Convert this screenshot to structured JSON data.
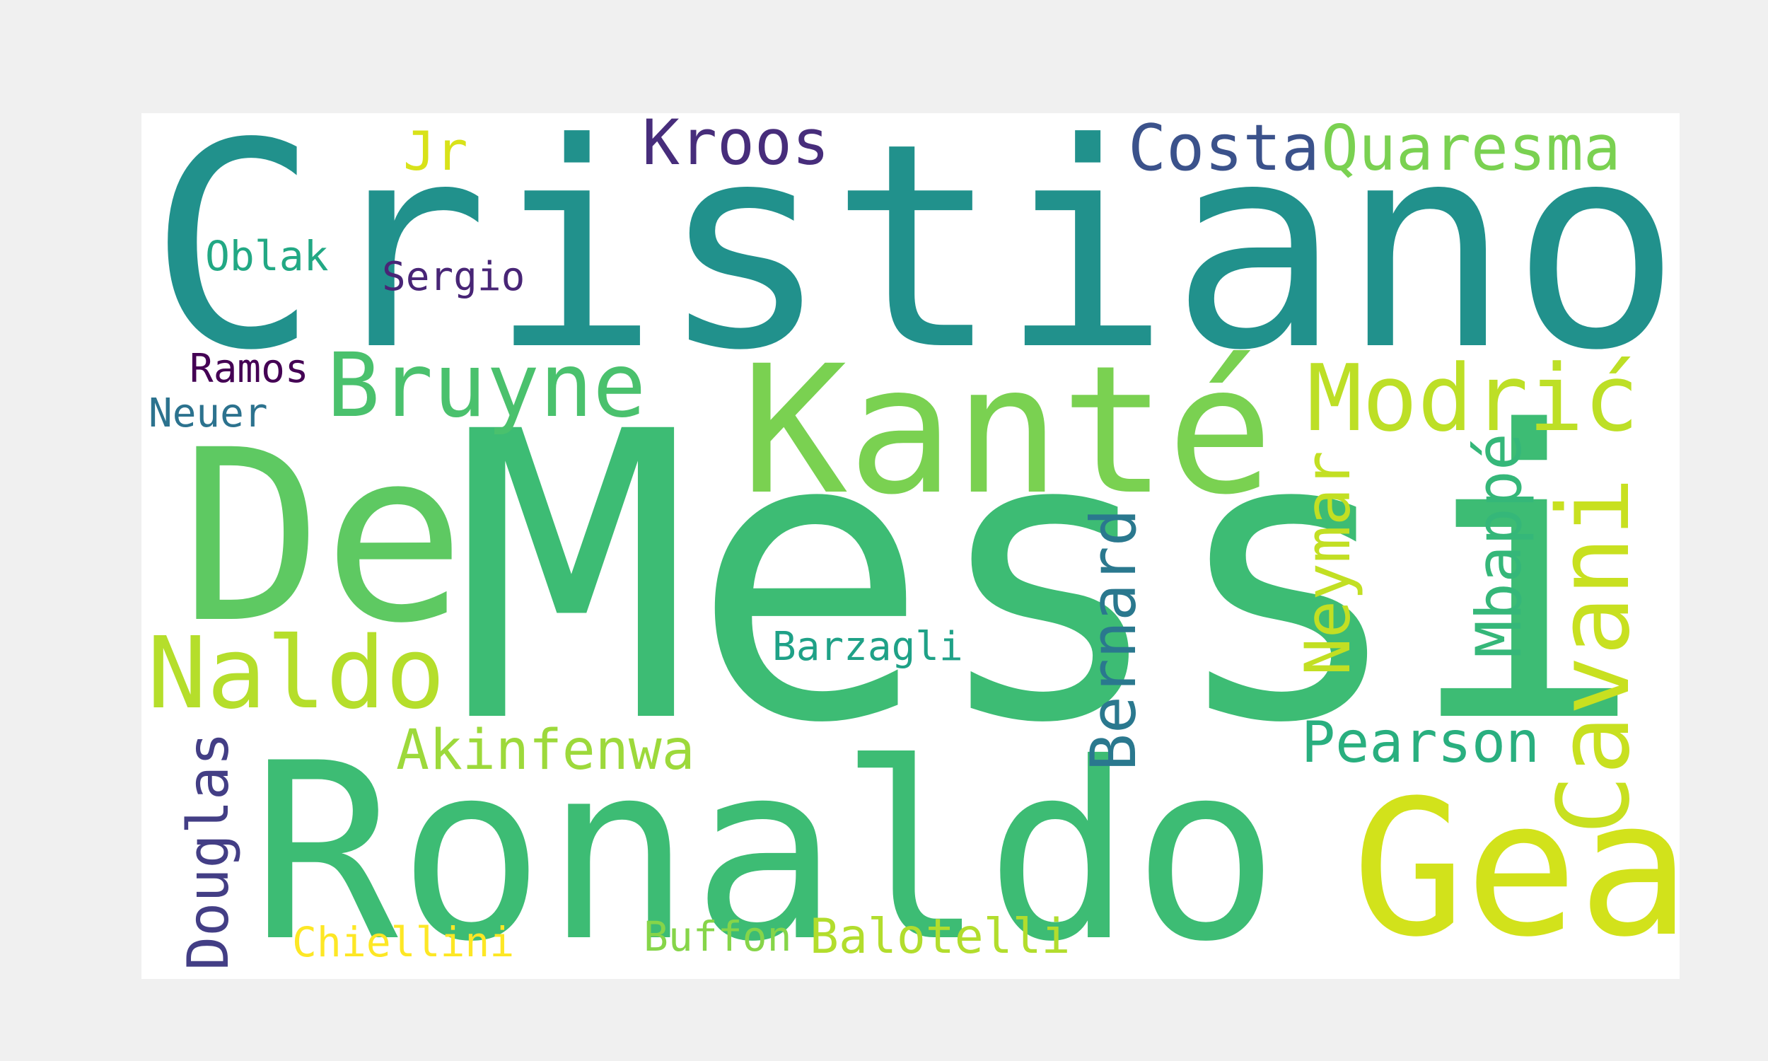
{
  "word_cloud": {
    "words": [
      {
        "text": "Cristiano",
        "color": "#21918c"
      },
      {
        "text": "Messi",
        "color": "#3dbc74"
      },
      {
        "text": "Ronaldo",
        "color": "#3dbc74"
      },
      {
        "text": "De",
        "color": "#5ec962"
      },
      {
        "text": "Kanté",
        "color": "#7ad151"
      },
      {
        "text": "Gea",
        "color": "#d2e21b"
      },
      {
        "text": "Naldo",
        "color": "#b5de2b"
      },
      {
        "text": "Bruyne",
        "color": "#4ac16d"
      },
      {
        "text": "Modrić",
        "color": "#bddf26"
      },
      {
        "text": "Cavani",
        "color": "#c8e020"
      },
      {
        "text": "Mbappé",
        "color": "#35b779"
      },
      {
        "text": "Neymar",
        "color": "#c2df23"
      },
      {
        "text": "Bernard",
        "color": "#2a788e"
      },
      {
        "text": "Douglas",
        "color": "#433e85"
      },
      {
        "text": "Akinfenwa",
        "color": "#9dd93b"
      },
      {
        "text": "Pearson",
        "color": "#29af7f"
      },
      {
        "text": "Balotelli",
        "color": "#b2dd2d"
      },
      {
        "text": "Kroos",
        "color": "#472d7b"
      },
      {
        "text": "Costa",
        "color": "#3b528b"
      },
      {
        "text": "Quaresma",
        "color": "#7ad151"
      },
      {
        "text": "Jr",
        "color": "#d8e219"
      },
      {
        "text": "Barzagli",
        "color": "#1fa187"
      },
      {
        "text": "Buffon",
        "color": "#86d549"
      },
      {
        "text": "Chiellini",
        "color": "#fde725"
      },
      {
        "text": "Oblak",
        "color": "#22a884"
      },
      {
        "text": "Sergio",
        "color": "#482576"
      },
      {
        "text": "Ramos",
        "color": "#440154"
      },
      {
        "text": "Neuer",
        "color": "#2c728e"
      }
    ]
  }
}
